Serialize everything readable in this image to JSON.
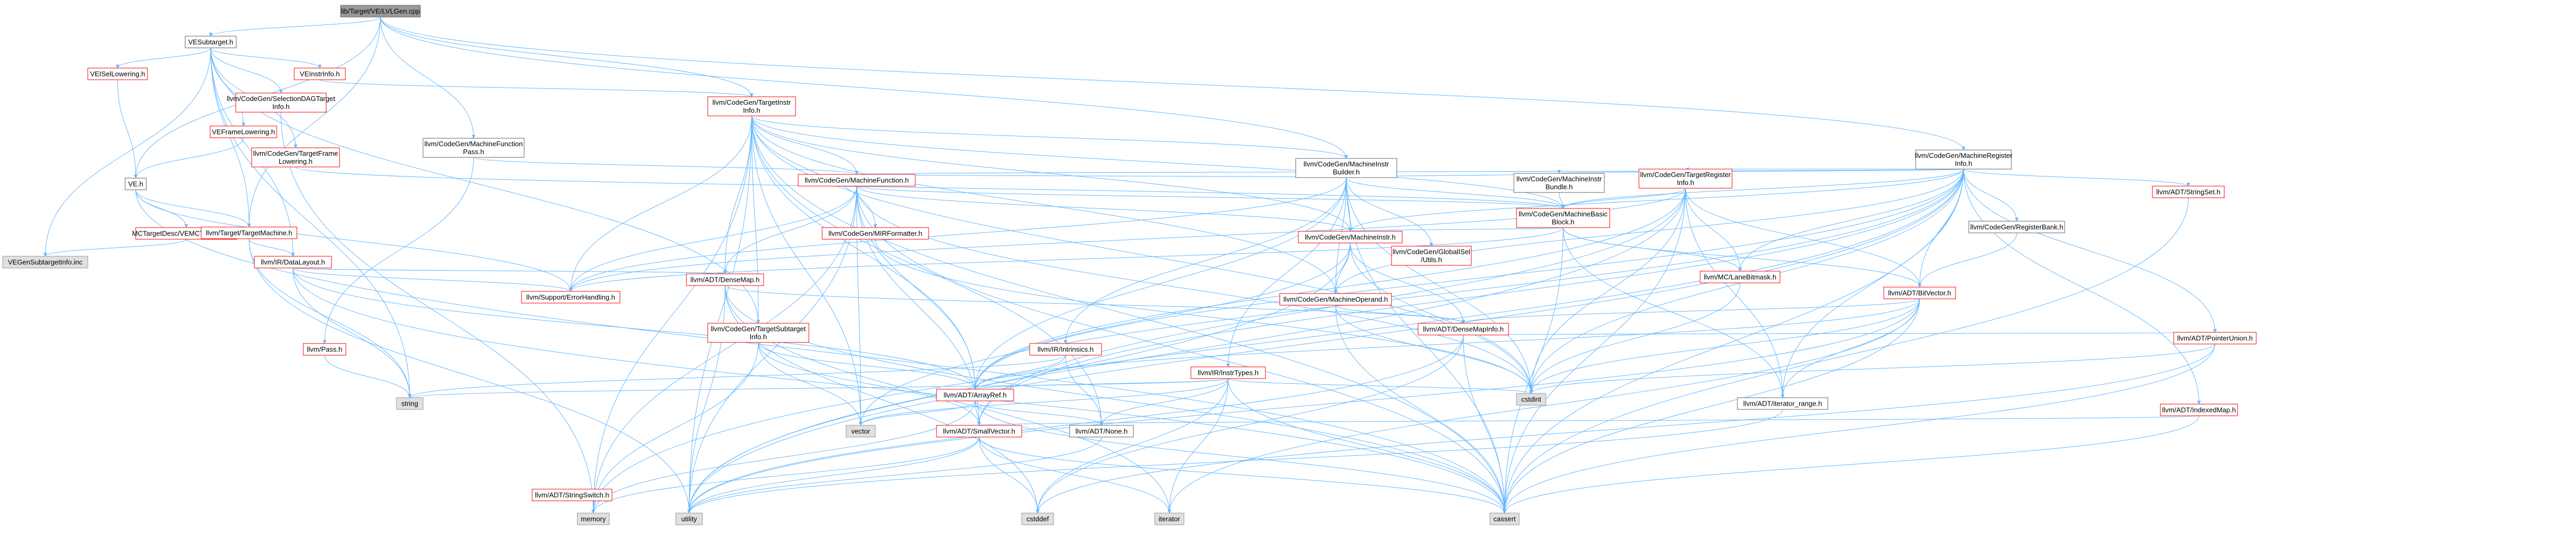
{
  "colors": {
    "root_fill": "#999999",
    "root_stroke": "#666666",
    "default_fill": "#ffffff",
    "default_stroke": "#666666",
    "red_fill": "#ffffff",
    "red_stroke": "#ff0000",
    "gray_fill": "#e0e0e0",
    "gray_stroke": "#999999",
    "edge": "#63b8ff"
  },
  "nodes": [
    {
      "id": "root",
      "lines": [
        "lib/Target/VE/LVLGen.cpp"
      ],
      "style": "root"
    },
    {
      "id": "vesubtarget",
      "lines": [
        "VESubtarget.h"
      ],
      "style": "default"
    },
    {
      "id": "veisellowering",
      "lines": [
        "VEISelLowering.h"
      ],
      "style": "red"
    },
    {
      "id": "veinstrinfo",
      "lines": [
        "VEInstrInfo.h"
      ],
      "style": "red"
    },
    {
      "id": "selectiondag",
      "lines": [
        "llvm/CodeGen/SelectionDAGTarget",
        "Info.h"
      ],
      "style": "red"
    },
    {
      "id": "veframelowering",
      "lines": [
        "VEFrameLowering.h"
      ],
      "style": "red"
    },
    {
      "id": "targetframelowering",
      "lines": [
        "llvm/CodeGen/TargetFrame",
        "Lowering.h"
      ],
      "style": "red"
    },
    {
      "id": "veh",
      "lines": [
        "VE.h"
      ],
      "style": "default"
    },
    {
      "id": "mctargetdesc",
      "lines": [
        "MCTargetDesc/VEMCTargetDesc.h"
      ],
      "style": "red"
    },
    {
      "id": "vegensubtarget",
      "lines": [
        "VEGenSubtargetInfo.inc"
      ],
      "style": "gray"
    },
    {
      "id": "targetmachine",
      "lines": [
        "llvm/Target/TargetMachine.h"
      ],
      "style": "red"
    },
    {
      "id": "datalayout",
      "lines": [
        "llvm/IR/DataLayout.h"
      ],
      "style": "red"
    },
    {
      "id": "pass",
      "lines": [
        "llvm/Pass.h"
      ],
      "style": "red"
    },
    {
      "id": "mfpass",
      "lines": [
        "llvm/CodeGen/MachineFunction",
        "Pass.h"
      ],
      "style": "default"
    },
    {
      "id": "targetinstrinfo",
      "lines": [
        "llvm/CodeGen/TargetInstr",
        "Info.h"
      ],
      "style": "red"
    },
    {
      "id": "machinefunction",
      "lines": [
        "llvm/CodeGen/MachineFunction.h"
      ],
      "style": "red"
    },
    {
      "id": "mirformatter",
      "lines": [
        "llvm/CodeGen/MIRFormatter.h"
      ],
      "style": "red"
    },
    {
      "id": "densemap",
      "lines": [
        "llvm/ADT/DenseMap.h"
      ],
      "style": "red"
    },
    {
      "id": "errorhandling",
      "lines": [
        "llvm/Support/ErrorHandling.h"
      ],
      "style": "red"
    },
    {
      "id": "targetsubtarget",
      "lines": [
        "llvm/CodeGen/TargetSubtarget",
        "Info.h"
      ],
      "style": "red"
    },
    {
      "id": "stringswitch",
      "lines": [
        "llvm/ADT/StringSwitch.h"
      ],
      "style": "red"
    },
    {
      "id": "mibuilder",
      "lines": [
        "llvm/CodeGen/MachineInstr",
        "Builder.h"
      ],
      "style": "default"
    },
    {
      "id": "mibundle",
      "lines": [
        "llvm/CodeGen/MachineInstr",
        "Bundle.h"
      ],
      "style": "default"
    },
    {
      "id": "machineinstr",
      "lines": [
        "llvm/CodeGen/MachineInstr.h"
      ],
      "style": "red"
    },
    {
      "id": "machinebasicblock",
      "lines": [
        "llvm/CodeGen/MachineBasic",
        "Block.h"
      ],
      "style": "red"
    },
    {
      "id": "globalisel",
      "lines": [
        "llvm/CodeGen/GlobalISel",
        "/Utils.h"
      ],
      "style": "red"
    },
    {
      "id": "machineoperand",
      "lines": [
        "llvm/CodeGen/MachineOperand.h"
      ],
      "style": "red"
    },
    {
      "id": "intrinsics",
      "lines": [
        "llvm/IR/Intrinsics.h"
      ],
      "style": "red"
    },
    {
      "id": "instrtypes",
      "lines": [
        "llvm/IR/InstrTypes.h"
      ],
      "style": "red"
    },
    {
      "id": "arrayref",
      "lines": [
        "llvm/ADT/ArrayRef.h"
      ],
      "style": "red"
    },
    {
      "id": "smallvector",
      "lines": [
        "llvm/ADT/SmallVector.h"
      ],
      "style": "red"
    },
    {
      "id": "none",
      "lines": [
        "llvm/ADT/None.h"
      ],
      "style": "default"
    },
    {
      "id": "densemapinfo",
      "lines": [
        "llvm/ADT/DenseMapInfo.h"
      ],
      "style": "red"
    },
    {
      "id": "mri",
      "lines": [
        "llvm/CodeGen/MachineRegister",
        "Info.h"
      ],
      "style": "default"
    },
    {
      "id": "targetregisterinfo",
      "lines": [
        "llvm/CodeGen/TargetRegister",
        "Info.h"
      ],
      "style": "red"
    },
    {
      "id": "registerbank",
      "lines": [
        "llvm/CodeGen/RegisterBank.h"
      ],
      "style": "default"
    },
    {
      "id": "lanebitmask",
      "lines": [
        "llvm/MC/LaneBitmask.h"
      ],
      "style": "red"
    },
    {
      "id": "bitvector",
      "lines": [
        "llvm/ADT/BitVector.h"
      ],
      "style": "red"
    },
    {
      "id": "iteratorrange",
      "lines": [
        "llvm/ADT/iterator_range.h"
      ],
      "style": "default"
    },
    {
      "id": "stringset",
      "lines": [
        "llvm/ADT/StringSet.h"
      ],
      "style": "red"
    },
    {
      "id": "pointerunion",
      "lines": [
        "llvm/ADT/PointerUnion.h"
      ],
      "style": "red"
    },
    {
      "id": "indexedmap",
      "lines": [
        "llvm/ADT/IndexedMap.h"
      ],
      "style": "red"
    },
    {
      "id": "string",
      "lines": [
        "string"
      ],
      "style": "gray"
    },
    {
      "id": "vector",
      "lines": [
        "vector"
      ],
      "style": "gray"
    },
    {
      "id": "cstdint",
      "lines": [
        "cstdint"
      ],
      "style": "gray"
    },
    {
      "id": "memory",
      "lines": [
        "memory"
      ],
      "style": "gray"
    },
    {
      "id": "utility",
      "lines": [
        "utility"
      ],
      "style": "gray"
    },
    {
      "id": "cstddef",
      "lines": [
        "cstddef"
      ],
      "style": "gray"
    },
    {
      "id": "iterator",
      "lines": [
        "iterator"
      ],
      "style": "gray"
    },
    {
      "id": "cassert",
      "lines": [
        "cassert"
      ],
      "style": "gray"
    }
  ]
}
